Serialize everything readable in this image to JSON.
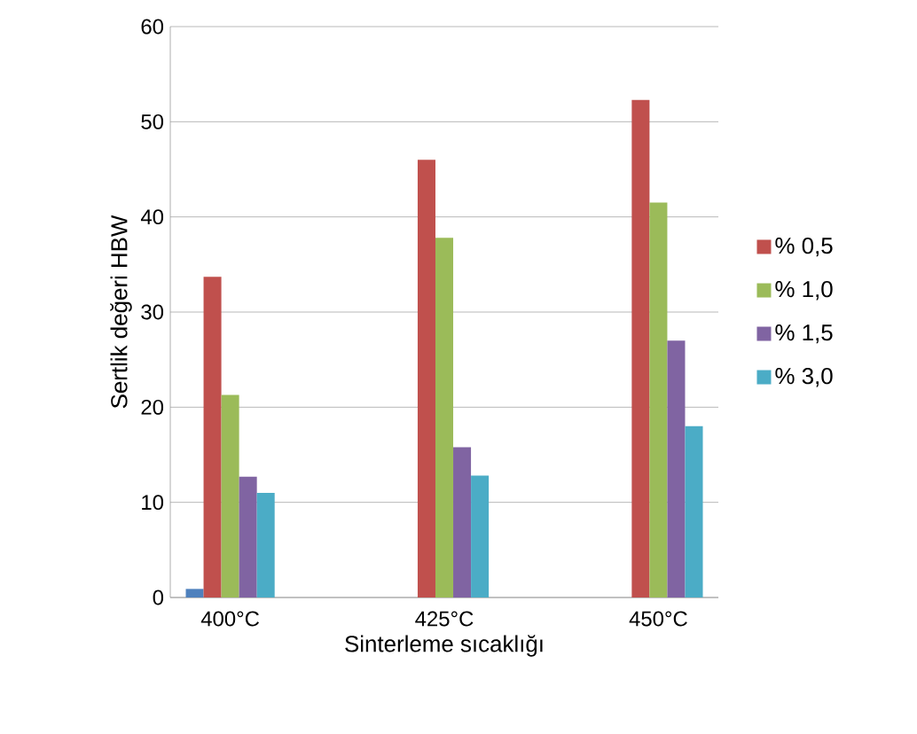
{
  "chart_data": {
    "type": "bar",
    "xlabel": "Sinterleme sıcaklığı",
    "ylabel": "Sertlik değeri  HBW",
    "categories": [
      "400°C",
      "425°C",
      "450°C"
    ],
    "series": [
      {
        "color": "#4f81bd",
        "values": [
          0.9,
          null,
          null
        ]
      },
      {
        "name": "% 0,5",
        "color": "#c0504d",
        "values": [
          33.7,
          46,
          52.3
        ]
      },
      {
        "name": "% 1,0",
        "color": "#9bbb59",
        "values": [
          21.3,
          37.8,
          41.5
        ]
      },
      {
        "name": "% 1,5",
        "color": "#8064a2",
        "values": [
          12.7,
          15.8,
          27
        ]
      },
      {
        "name": "% 3,0",
        "color": "#4bacc6",
        "values": [
          11,
          12.8,
          18
        ]
      }
    ],
    "ylim": [
      0,
      60
    ],
    "yticks": [
      0,
      10,
      20,
      30,
      40,
      50,
      60
    ],
    "grid": "y",
    "legend": "right"
  }
}
